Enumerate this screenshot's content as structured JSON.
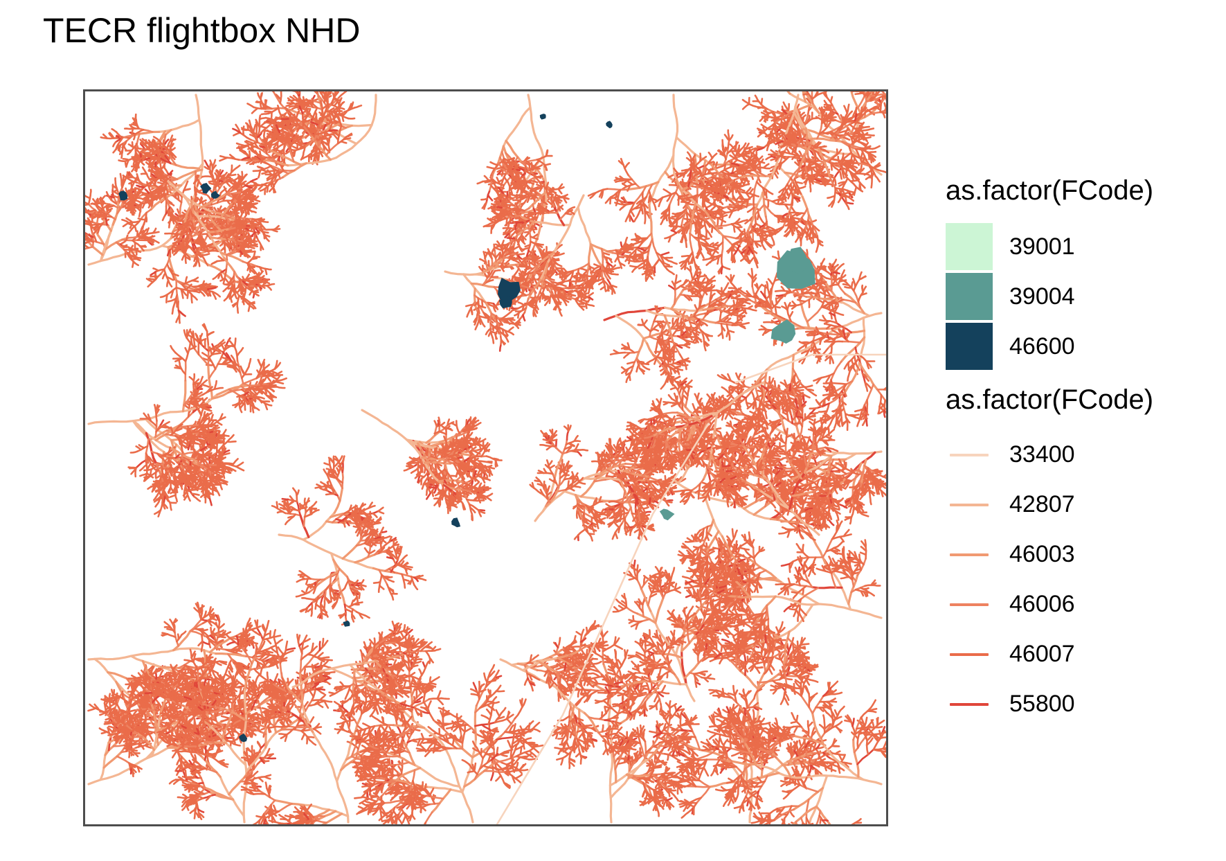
{
  "title": "TECR flightbox NHD",
  "legend": {
    "polygons": {
      "title": "as.factor(FCode)",
      "items": [
        {
          "label": "39001",
          "color": "#ccf5d5"
        },
        {
          "label": "39004",
          "color": "#5a9b93"
        },
        {
          "label": "46600",
          "color": "#14415c"
        }
      ]
    },
    "lines": {
      "title": "as.factor(FCode)",
      "items": [
        {
          "label": "33400",
          "color": "#f7d4bd"
        },
        {
          "label": "42807",
          "color": "#f4b693"
        },
        {
          "label": "46003",
          "color": "#f19a72"
        },
        {
          "label": "46006",
          "color": "#ee8260"
        },
        {
          "label": "46007",
          "color": "#ea6c4a"
        },
        {
          "label": "55800",
          "color": "#e0463a"
        }
      ]
    }
  }
}
